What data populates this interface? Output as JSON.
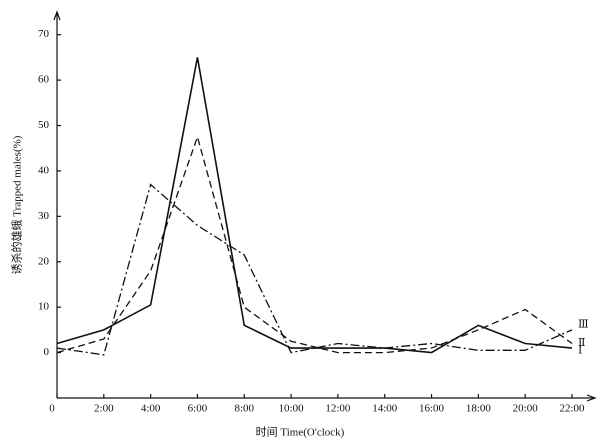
{
  "chart_data": {
    "type": "line",
    "x_label": "时间 Time(O'clock)",
    "y_label": "诱杀的雄蛾 Trapped males(%)",
    "x": [
      0,
      2,
      4,
      6,
      8,
      10,
      12,
      14,
      16,
      18,
      20,
      22
    ],
    "xlim": [
      0,
      23
    ],
    "xticks": [
      0,
      {
        "value": 2,
        "label": "2:00"
      },
      {
        "value": 4,
        "label": "4:00"
      },
      {
        "value": 6,
        "label": "6:00"
      },
      {
        "value": 8,
        "label": "8:00"
      },
      {
        "value": 10,
        "label": "10:00"
      },
      {
        "value": 12,
        "label": "12:00"
      },
      {
        "value": 14,
        "label": "14:00"
      },
      {
        "value": 16,
        "label": "16:00"
      },
      {
        "value": 18,
        "label": "18:00"
      },
      {
        "value": 20,
        "label": "20:00"
      },
      {
        "value": 22,
        "label": "22:00"
      }
    ],
    "ylim": [
      -10,
      75
    ],
    "yticks": [
      0,
      10,
      20,
      30,
      40,
      50,
      60,
      70
    ],
    "series": [
      {
        "name": "Ⅰ",
        "color": "#111111",
        "dash": "solid",
        "values": [
          2,
          5,
          10.5,
          65,
          6,
          1,
          1,
          1,
          0,
          6,
          2,
          1
        ]
      },
      {
        "name": "Ⅱ",
        "color": "#111111",
        "dash": "dashed",
        "values": [
          0,
          3,
          18,
          47.5,
          10,
          2.5,
          0,
          0,
          1,
          5,
          9.5,
          2
        ]
      },
      {
        "name": "Ⅲ",
        "color": "#111111",
        "dash": "dashdot",
        "values": [
          1,
          -0.5,
          37,
          28,
          21.5,
          0,
          2,
          1,
          2,
          0.5,
          0.5,
          5
        ]
      }
    ]
  }
}
